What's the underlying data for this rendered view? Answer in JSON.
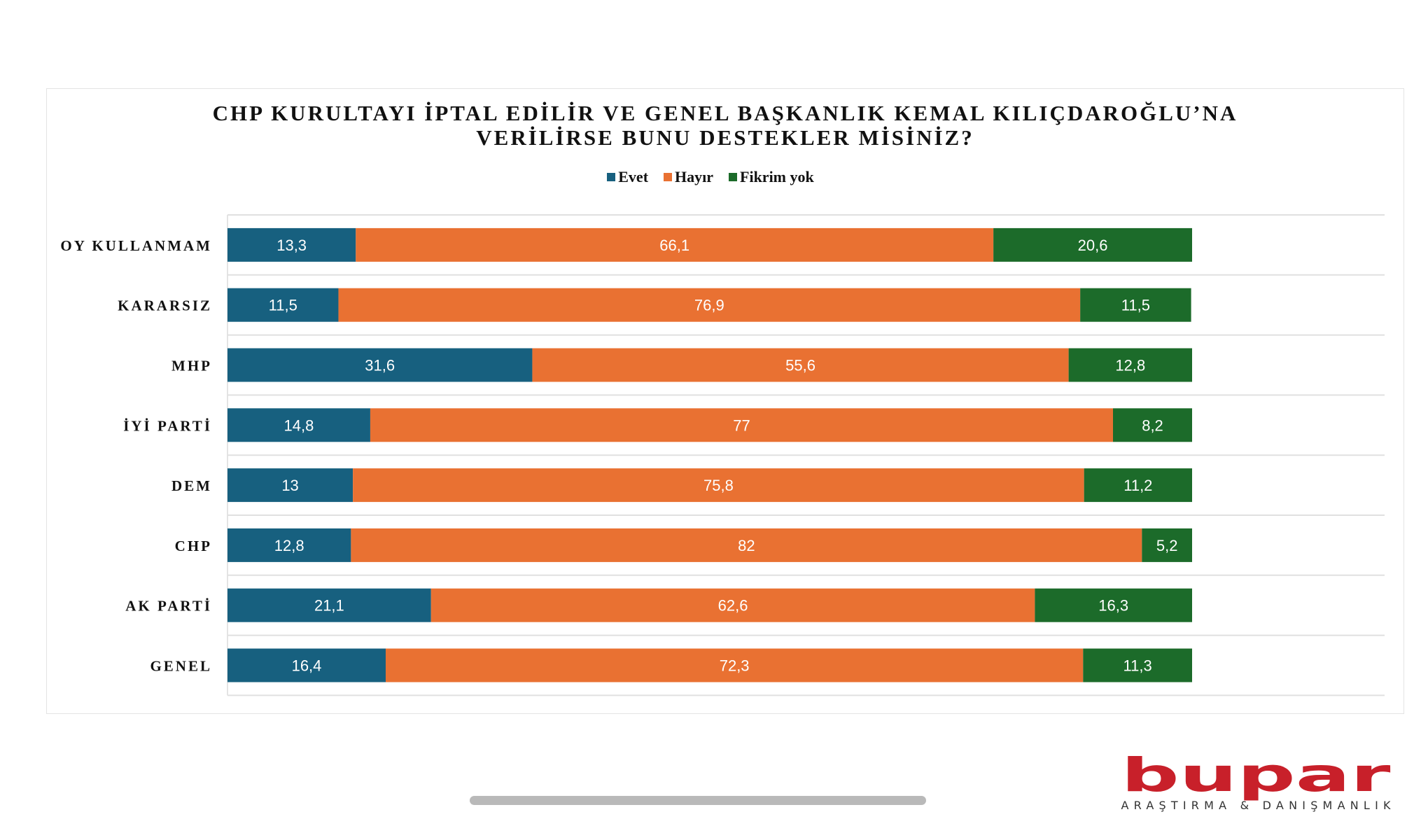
{
  "chart_data": {
    "type": "bar",
    "stacked": true,
    "orientation": "horizontal",
    "title_lines": [
      "CHP KURULTAYI İPTAL EDİLİR VE GENEL BAŞKANLIK KEMAL KILIÇDAROĞLU’NA",
      "VERİLİRSE BUNU  DESTEKLER MİSİNİZ?"
    ],
    "legend_position": "top",
    "categories": [
      "OY KULLANMAM",
      "KARARSIZ",
      "MHP",
      "İYİ PARTİ",
      "DEM",
      "CHP",
      "AK PARTİ",
      "GENEL"
    ],
    "series": [
      {
        "name": "Evet",
        "color": "#17607f",
        "values": [
          13.3,
          11.5,
          31.6,
          14.8,
          13,
          12.8,
          21.1,
          16.4
        ],
        "labels": [
          "13,3",
          "11,5",
          "31,6",
          "14,8",
          "13",
          "12,8",
          "21,1",
          "16,4"
        ]
      },
      {
        "name": "Hayır",
        "color": "#e97132",
        "values": [
          66.1,
          76.9,
          55.6,
          77,
          75.8,
          82,
          62.6,
          72.3
        ],
        "labels": [
          "66,1",
          "76,9",
          "55,6",
          "77",
          "75,8",
          "82",
          "62,6",
          "72,3"
        ]
      },
      {
        "name": "Fikrim yok",
        "color": "#1c6b2a",
        "values": [
          20.6,
          11.5,
          12.8,
          8.2,
          11.2,
          5.2,
          16.3,
          11.3
        ],
        "labels": [
          "20,6",
          "11,5",
          "12,8",
          "8,2",
          "11,2",
          "5,2",
          "16,3",
          "11,3"
        ]
      }
    ],
    "xlim": [
      0,
      120
    ],
    "grid": true
  },
  "logo": {
    "name": "bupar",
    "tagline": "ARAŞTIRMA & DANIŞMANLIK",
    "color": "#c8202a"
  }
}
